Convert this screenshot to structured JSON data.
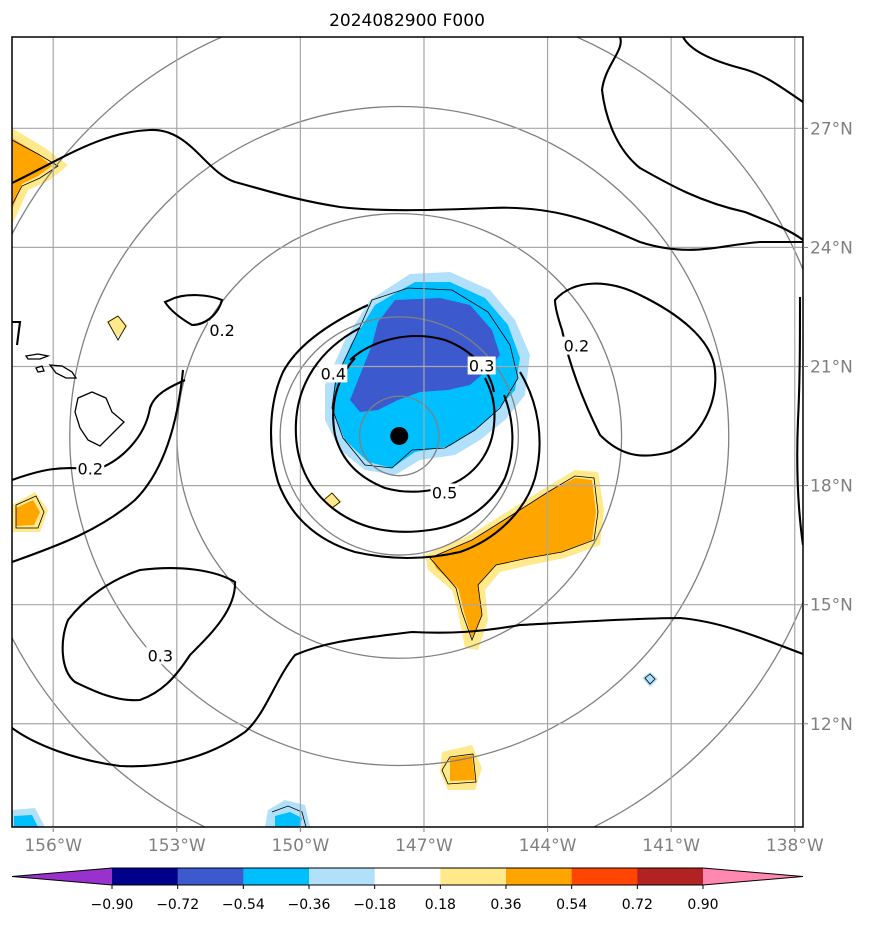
{
  "title": "2024082900 F000",
  "map": {
    "lon_range": [
      -157.0,
      -137.8
    ],
    "lat_range": [
      9.4,
      29.3
    ],
    "lon_ticks": [
      -156,
      -153,
      -150,
      -147,
      -144,
      -141,
      -138
    ],
    "lon_tick_labels": [
      "156°W",
      "153°W",
      "150°W",
      "147°W",
      "144°W",
      "141°W",
      "138°W"
    ],
    "lat_ticks": [
      12,
      15,
      18,
      21,
      24,
      27
    ],
    "lat_tick_labels": [
      "12°N",
      "15°N",
      "18°N",
      "21°N",
      "24°N",
      "27°N"
    ],
    "grid": true,
    "center_marker": {
      "lon": -147.6,
      "lat": 19.25
    },
    "range_rings_deg": [
      1,
      3,
      5.6,
      8.3,
      11
    ],
    "contour_labels": [
      {
        "text": "0.2",
        "lon": -151.9,
        "lat": 21.9
      },
      {
        "text": "0.2",
        "lon": -155.1,
        "lat": 18.4
      },
      {
        "text": "0.2",
        "lon": -143.3,
        "lat": 21.5
      },
      {
        "text": "0.3",
        "lon": -145.6,
        "lat": 21.0
      },
      {
        "text": "0.3",
        "lon": -153.4,
        "lat": 13.7
      },
      {
        "text": "0.4",
        "lon": -149.2,
        "lat": 20.8
      },
      {
        "text": "0.5",
        "lon": -146.5,
        "lat": 17.8
      }
    ]
  },
  "colorbar": {
    "boundaries": [
      -0.9,
      -0.72,
      -0.54,
      -0.36,
      -0.18,
      0.18,
      0.36,
      0.54,
      0.72,
      0.9
    ],
    "labels": [
      "−0.90",
      "−0.72",
      "−0.54",
      "−0.36",
      "−0.18",
      "0.18",
      "0.36",
      "0.54",
      "0.72",
      "0.90"
    ],
    "colors": [
      "#9932cc",
      "#00008b",
      "#3c5acd",
      "#00bfff",
      "#b0e0fa",
      "#ffffff",
      "#ffe98a",
      "#ffa500",
      "#ff4500",
      "#b22222",
      "#ff88b0"
    ]
  }
}
